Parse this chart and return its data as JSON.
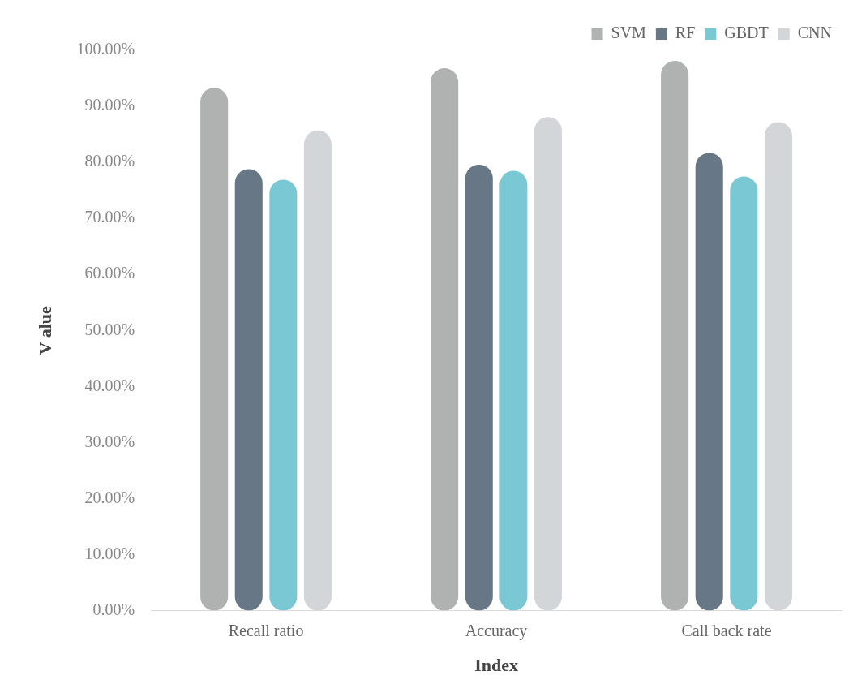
{
  "chart_data": {
    "type": "bar",
    "xlabel": "Index",
    "ylabel": "V alue",
    "categories": [
      "Recall ratio",
      "Accuracy",
      "Call back rate"
    ],
    "series": [
      {
        "name": "SVM",
        "color": "#b0b2b1",
        "values": [
          93.3,
          96.8,
          98.1
        ]
      },
      {
        "name": "RF",
        "color": "#687786",
        "values": [
          78.8,
          79.6,
          81.7
        ]
      },
      {
        "name": "GBDT",
        "color": "#7bc8d5",
        "values": [
          76.9,
          78.5,
          77.5
        ]
      },
      {
        "name": "CNN",
        "color": "#d2d6d8",
        "values": [
          85.7,
          88.1,
          87.2
        ]
      }
    ],
    "ylim": [
      0,
      100
    ],
    "yticks": [
      {
        "value": 0,
        "label": "0.00%"
      },
      {
        "value": 10,
        "label": "10.00%"
      },
      {
        "value": 20,
        "label": "20.00%"
      },
      {
        "value": 30,
        "label": "30.00%"
      },
      {
        "value": 40,
        "label": "40.00%"
      },
      {
        "value": 50,
        "label": "50.00%"
      },
      {
        "value": 60,
        "label": "60.00%"
      },
      {
        "value": 70,
        "label": "70.00%"
      },
      {
        "value": 80,
        "label": "80.00%"
      },
      {
        "value": 90,
        "label": "90.00%"
      },
      {
        "value": 100,
        "label": "100.00%"
      }
    ],
    "grid": false,
    "legend": "top right"
  }
}
